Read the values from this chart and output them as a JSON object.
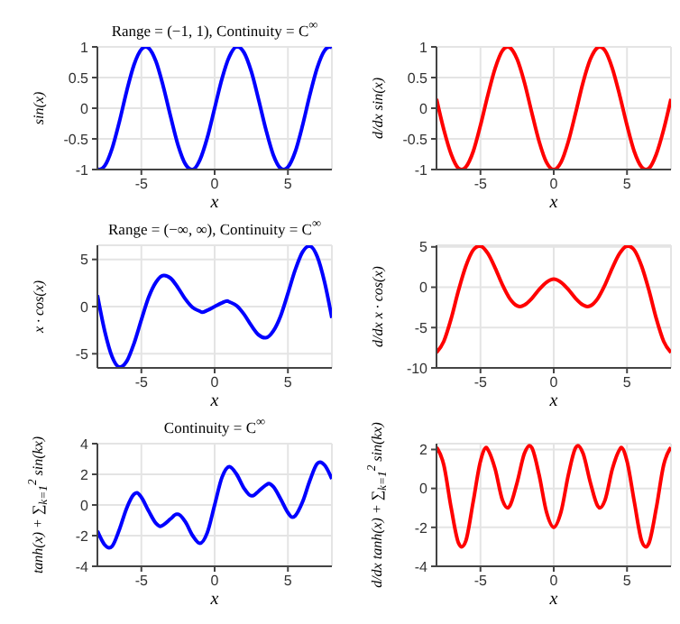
{
  "chart_data": [
    {
      "type": "line",
      "title": "Range = (−1, 1), Continuity = C$^{∞}$",
      "xlabel": "x",
      "ylabel": "sin(x)",
      "grid": true,
      "xlim": [
        -8,
        8
      ],
      "ylim": [
        -1,
        1
      ],
      "xticks": [
        -5,
        0,
        5
      ],
      "yticks": [
        -1,
        -0.5,
        0,
        0.5,
        1
      ],
      "x": [
        -8,
        -7.85,
        -7.5,
        -7,
        -6.5,
        -6,
        -5.5,
        -5,
        -4.71,
        -4.5,
        -4,
        -3.5,
        -3,
        -2.5,
        -2,
        -1.57,
        -1.5,
        -1,
        -0.5,
        0,
        0.5,
        1,
        1.5,
        1.57,
        2,
        2.5,
        3,
        3.5,
        4,
        4.5,
        4.71,
        5,
        5.5,
        6,
        6.5,
        7,
        7.5,
        7.85,
        8
      ],
      "series": [
        {
          "color": "#0000ff",
          "values": [
            -0.99,
            -1,
            -0.94,
            -0.66,
            -0.22,
            0.28,
            0.71,
            0.96,
            1,
            0.98,
            0.76,
            0.35,
            -0.14,
            -0.6,
            -0.91,
            -1,
            -1,
            -0.84,
            -0.48,
            0,
            0.48,
            0.84,
            1,
            1,
            0.91,
            0.6,
            0.14,
            -0.35,
            -0.76,
            -0.98,
            -1,
            -0.96,
            -0.71,
            -0.28,
            0.22,
            0.66,
            0.94,
            1,
            0.99
          ]
        }
      ]
    },
    {
      "type": "line",
      "xlabel": "x",
      "ylabel": "d/dx sin(x)",
      "grid": true,
      "xlim": [
        -8,
        8
      ],
      "ylim": [
        -1,
        1
      ],
      "xticks": [
        -5,
        0,
        5
      ],
      "yticks": [
        -1,
        -0.5,
        0,
        0.5,
        1
      ],
      "x": [
        -8,
        -7.5,
        -7,
        -6.5,
        -6.28,
        -6,
        -5.5,
        -5,
        -4.5,
        -4,
        -3.5,
        -3.14,
        -3,
        -2.5,
        -2,
        -1.5,
        -1,
        -0.5,
        0,
        0.5,
        1,
        1.5,
        2,
        2.5,
        3,
        3.14,
        3.5,
        4,
        4.5,
        5,
        5.5,
        6,
        6.28,
        6.5,
        7,
        7.5,
        8
      ],
      "series": [
        {
          "color": "#ff0000",
          "values": [
            0.15,
            -0.35,
            -0.75,
            -0.98,
            -1,
            -0.96,
            -0.71,
            -0.28,
            0.21,
            0.65,
            0.94,
            1,
            0.99,
            0.8,
            0.42,
            -0.07,
            -0.54,
            -0.88,
            -1,
            -0.88,
            -0.54,
            -0.07,
            0.42,
            0.8,
            0.99,
            1,
            0.94,
            0.65,
            0.21,
            -0.28,
            -0.71,
            -0.96,
            -1,
            -0.98,
            -0.75,
            -0.35,
            0.15
          ]
        }
      ]
    },
    {
      "type": "line",
      "title": "Range = (−∞, ∞), Continuity = C$^{∞}$",
      "xlabel": "x",
      "ylabel": "x · cos(x)",
      "grid": true,
      "xlim": [
        -8,
        8
      ],
      "ylim": [
        -6.5,
        6.5
      ],
      "xticks": [
        -5,
        0,
        5
      ],
      "yticks": [
        -5,
        0,
        5
      ],
      "x": [
        -8,
        -7.5,
        -7,
        -6.5,
        -6.44,
        -6,
        -5.5,
        -5,
        -4.5,
        -4,
        -3.5,
        -3.43,
        -3,
        -2.5,
        -2,
        -1.5,
        -1,
        -0.86,
        -0.5,
        0,
        0.5,
        0.86,
        1,
        1.5,
        2,
        2.5,
        3,
        3.43,
        3.5,
        4,
        4.5,
        5,
        5.5,
        6,
        6.44,
        6.5,
        7,
        7.5,
        8
      ],
      "series": [
        {
          "color": "#0000ff",
          "values": [
            1.2,
            -2.6,
            -5.3,
            -6.4,
            -6.4,
            -5.8,
            -3.9,
            -1.4,
            1,
            2.6,
            3.3,
            3.3,
            3,
            2,
            0.8,
            -0.1,
            -0.5,
            -0.6,
            -0.4,
            0,
            0.4,
            0.6,
            0.5,
            0.1,
            -0.8,
            -2,
            -3,
            -3.3,
            -3.3,
            -2.6,
            -1,
            1.4,
            3.9,
            5.8,
            6.4,
            6.4,
            5.3,
            2.6,
            -1.2
          ]
        }
      ]
    },
    {
      "type": "line",
      "xlabel": "x",
      "ylabel": "d/dx x · cos(x)",
      "grid": true,
      "xlim": [
        -8,
        8
      ],
      "ylim": [
        -10,
        5.2
      ],
      "xticks": [
        -5,
        0,
        5
      ],
      "yticks": [
        -10,
        -5,
        0,
        5
      ],
      "x": [
        -8,
        -7.5,
        -7,
        -6.5,
        -6,
        -5.5,
        -5.09,
        -5,
        -4.5,
        -4,
        -3.5,
        -3,
        -2.5,
        -2.29,
        -2,
        -1.5,
        -1,
        -0.5,
        0,
        0.5,
        1,
        1.5,
        2,
        2.29,
        2.5,
        3,
        3.5,
        4,
        4.5,
        5,
        5.09,
        5.5,
        6,
        6.5,
        7,
        7.5,
        8
      ],
      "series": [
        {
          "color": "#ff0000",
          "values": [
            -8.1,
            -6.7,
            -3.9,
            -0.4,
            2.6,
            4.6,
            5.1,
            5.1,
            4.2,
            2.4,
            0.3,
            -1.4,
            -2.3,
            -2.4,
            -2.2,
            -1.4,
            -0.3,
            0.6,
            1,
            0.6,
            -0.3,
            -1.4,
            -2.2,
            -2.4,
            -2.3,
            -1.4,
            0.3,
            2.4,
            4.2,
            5.1,
            5.1,
            4.6,
            2.6,
            -0.4,
            -3.9,
            -6.7,
            -8.1
          ]
        }
      ]
    },
    {
      "type": "line",
      "title": "Continuity = C$^{∞}$",
      "xlabel": "x",
      "ylabel": "tanh(x) + ∑$_{k=1}$$^{2}$ sin(kx)",
      "grid": true,
      "xlim": [
        -8,
        8
      ],
      "ylim": [
        -4,
        4
      ],
      "xticks": [
        -5,
        0,
        5
      ],
      "yticks": [
        -4,
        -2,
        0,
        2,
        4
      ],
      "x": [
        -8,
        -7.5,
        -7.2,
        -7,
        -6.5,
        -6,
        -5.5,
        -5.3,
        -5,
        -4.5,
        -4,
        -3.7,
        -3.5,
        -3,
        -2.6,
        -2.5,
        -2,
        -1.5,
        -1,
        -0.5,
        0,
        0.5,
        1,
        1.5,
        2,
        2.5,
        2.6,
        3,
        3.5,
        3.7,
        4,
        4.5,
        5,
        5.3,
        5.5,
        6,
        6.5,
        7,
        7.2,
        7.5,
        8
      ],
      "series": [
        {
          "color": "#0000ff",
          "values": [
            -1.7,
            -2.6,
            -2.8,
            -2.7,
            -1.6,
            -0.2,
            0.7,
            0.8,
            0.5,
            -0.4,
            -1.2,
            -1.4,
            -1.3,
            -0.9,
            -0.6,
            -0.6,
            -1.1,
            -2,
            -2.5,
            -1.8,
            0,
            1.8,
            2.5,
            2,
            1.1,
            0.6,
            0.6,
            0.9,
            1.3,
            1.4,
            1.2,
            0.4,
            -0.5,
            -0.8,
            -0.7,
            0.2,
            1.6,
            2.7,
            2.8,
            2.6,
            1.7
          ]
        }
      ]
    },
    {
      "type": "line",
      "xlabel": "x",
      "ylabel": "d/dx tanh(x) + ∑$_{k=1}$$^{2}$ sin(kx)",
      "grid": true,
      "xlim": [
        -8,
        8
      ],
      "ylim": [
        -4,
        2.3
      ],
      "xticks": [
        -5,
        0,
        5
      ],
      "yticks": [
        -4,
        -2,
        0,
        2
      ],
      "x": [
        -8,
        -7.9,
        -7.5,
        -7,
        -6.5,
        -6.28,
        -6,
        -5.5,
        -5,
        -4.6,
        -4.5,
        -4,
        -3.5,
        -3.14,
        -3,
        -2.5,
        -2,
        -1.65,
        -1.5,
        -1,
        -0.5,
        0,
        0.5,
        1,
        1.5,
        1.65,
        2,
        2.5,
        3,
        3.14,
        3.5,
        4,
        4.5,
        4.6,
        5,
        5.5,
        6,
        6.28,
        6.5,
        7,
        7.5,
        7.9,
        8
      ],
      "series": [
        {
          "color": "#ff0000",
          "values": [
            2.1,
            2,
            1.2,
            -1,
            -2.8,
            -3,
            -2.7,
            -0.7,
            1.4,
            2.1,
            2,
            1,
            -0.6,
            -1,
            -0.9,
            0.3,
            1.8,
            2.2,
            2.1,
            0.7,
            -1.2,
            -2,
            -1.2,
            0.7,
            2.1,
            2.2,
            1.8,
            0.3,
            -0.9,
            -1,
            -0.6,
            1,
            2,
            2.1,
            1.4,
            -0.7,
            -2.7,
            -3,
            -2.8,
            -1,
            1.2,
            2,
            2.1
          ]
        }
      ]
    }
  ]
}
